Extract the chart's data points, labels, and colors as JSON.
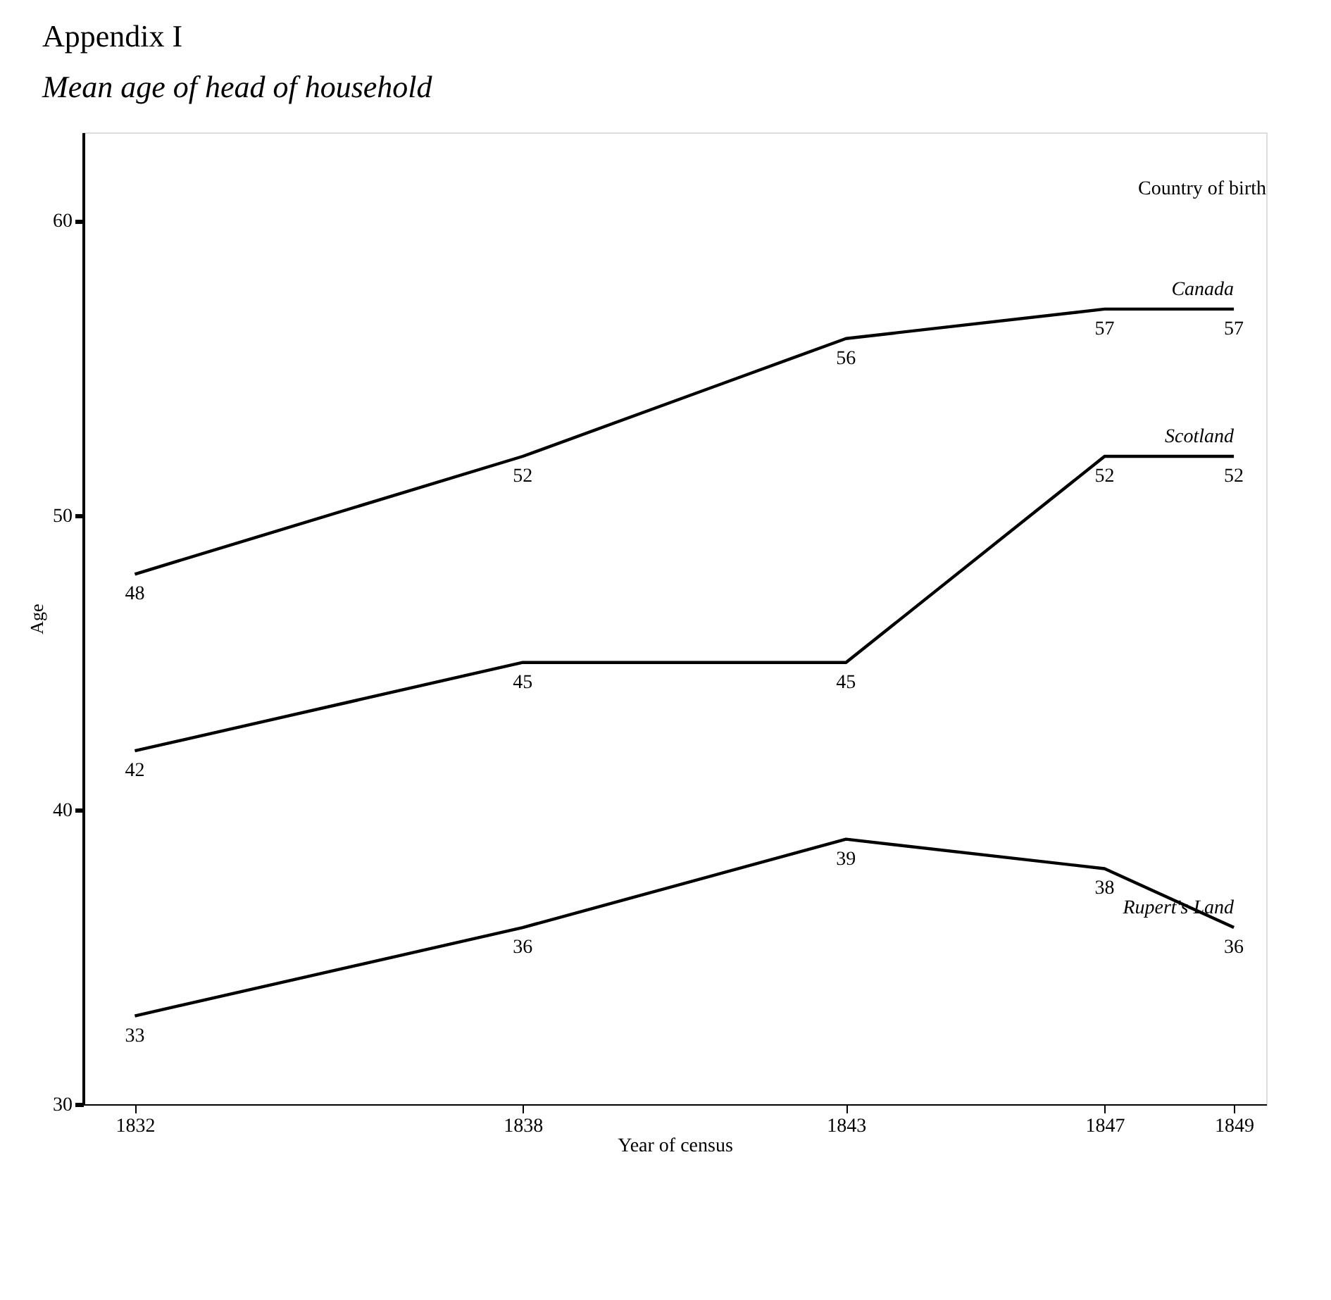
{
  "chart_data": {
    "type": "line",
    "title": "Appendix I",
    "subtitle": "Mean age of head of household",
    "xlabel": "Year of census",
    "ylabel": "Age",
    "legend_title": "Country of birth",
    "x": [
      1832,
      1838,
      1843,
      1847,
      1849
    ],
    "series": [
      {
        "name": "Canada",
        "color": "#000000",
        "values": [
          48,
          52,
          56,
          57,
          57
        ]
      },
      {
        "name": "Scotland",
        "color": "#000000",
        "values": [
          42,
          45,
          45,
          52,
          52
        ]
      },
      {
        "name": "Rupert's Land",
        "color": "#000000",
        "values": [
          33,
          36,
          39,
          38,
          36
        ]
      }
    ],
    "xlim": [
      1831.2,
      1849.5
    ],
    "xticks": [
      1832,
      1838,
      1843,
      1847,
      1849
    ],
    "ylim": [
      30,
      63
    ],
    "yticks": [
      30,
      40,
      50,
      60
    ],
    "data_labels": true,
    "grid": false,
    "marker": "none",
    "line_style": "solid"
  }
}
